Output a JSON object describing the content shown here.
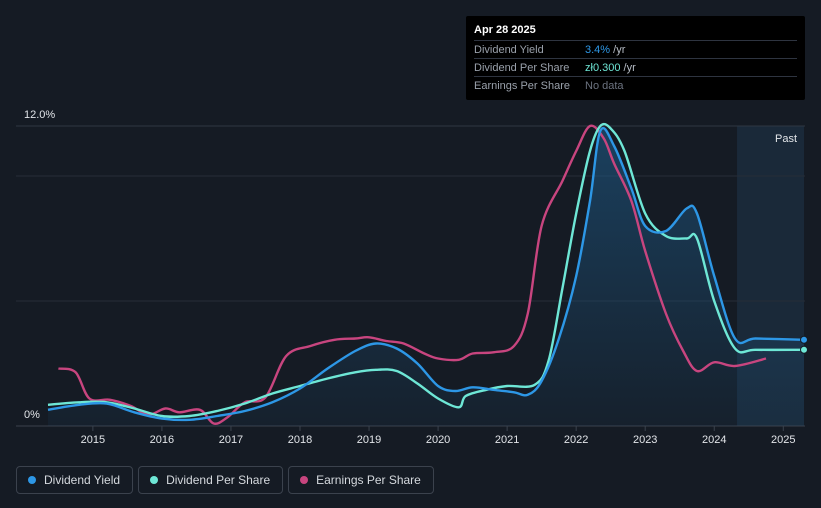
{
  "tooltip": {
    "date": "Apr 28 2025",
    "rows": [
      {
        "label": "Dividend Yield",
        "value": "3.4%",
        "unit": " /yr",
        "color": "#2d97e6"
      },
      {
        "label": "Dividend Per Share",
        "value": "zł0.300",
        "unit": " /yr",
        "color": "#6ee7d6"
      },
      {
        "label": "Earnings Per Share",
        "value": "No data",
        "unit": "",
        "color": "#6c7380"
      }
    ]
  },
  "past_label": "Past",
  "legend": [
    {
      "label": "Dividend Yield",
      "color": "#2d97e6"
    },
    {
      "label": "Dividend Per Share",
      "color": "#6ee7d6"
    },
    {
      "label": "Earnings Per Share",
      "color": "#c8457f"
    }
  ],
  "chart_data": {
    "type": "line",
    "y_labels": [
      "12.0%",
      "0%"
    ],
    "ylim": [
      0,
      12
    ],
    "x_ticks": [
      "2015",
      "2016",
      "2017",
      "2018",
      "2019",
      "2020",
      "2021",
      "2022",
      "2023",
      "2024",
      "2025"
    ],
    "xlim": [
      2014.35,
      2025.3
    ],
    "past_start": 2024.33,
    "series": [
      {
        "name": "Dividend Yield",
        "color": "#2d97e6",
        "area": true,
        "points": [
          [
            2014.35,
            0.65
          ],
          [
            2014.8,
            0.85
          ],
          [
            2015.2,
            0.9
          ],
          [
            2015.6,
            0.55
          ],
          [
            2016.0,
            0.3
          ],
          [
            2016.4,
            0.25
          ],
          [
            2016.8,
            0.4
          ],
          [
            2017.2,
            0.6
          ],
          [
            2017.6,
            0.95
          ],
          [
            2018.0,
            1.5
          ],
          [
            2018.4,
            2.3
          ],
          [
            2018.8,
            3.0
          ],
          [
            2019.1,
            3.3
          ],
          [
            2019.4,
            3.1
          ],
          [
            2019.7,
            2.5
          ],
          [
            2020.0,
            1.6
          ],
          [
            2020.25,
            1.4
          ],
          [
            2020.5,
            1.55
          ],
          [
            2020.8,
            1.45
          ],
          [
            2021.1,
            1.35
          ],
          [
            2021.3,
            1.25
          ],
          [
            2021.5,
            1.8
          ],
          [
            2021.75,
            3.5
          ],
          [
            2022.0,
            6.0
          ],
          [
            2022.2,
            9.0
          ],
          [
            2022.35,
            11.8
          ],
          [
            2022.55,
            11.2
          ],
          [
            2022.8,
            9.5
          ],
          [
            2023.0,
            8.0
          ],
          [
            2023.3,
            7.8
          ],
          [
            2023.6,
            8.7
          ],
          [
            2023.75,
            8.5
          ],
          [
            2024.0,
            6.0
          ],
          [
            2024.3,
            3.5
          ],
          [
            2024.6,
            3.5
          ],
          [
            2025.3,
            3.45
          ]
        ]
      },
      {
        "name": "Dividend Per Share",
        "color": "#6ee7d6",
        "area": false,
        "points": [
          [
            2014.35,
            0.85
          ],
          [
            2014.8,
            0.95
          ],
          [
            2015.2,
            0.95
          ],
          [
            2015.6,
            0.7
          ],
          [
            2016.0,
            0.4
          ],
          [
            2016.4,
            0.4
          ],
          [
            2016.8,
            0.6
          ],
          [
            2017.2,
            0.9
          ],
          [
            2017.6,
            1.3
          ],
          [
            2018.0,
            1.6
          ],
          [
            2018.4,
            1.9
          ],
          [
            2018.8,
            2.15
          ],
          [
            2019.1,
            2.25
          ],
          [
            2019.4,
            2.2
          ],
          [
            2019.7,
            1.7
          ],
          [
            2020.0,
            1.1
          ],
          [
            2020.3,
            0.75
          ],
          [
            2020.4,
            1.2
          ],
          [
            2020.7,
            1.45
          ],
          [
            2021.0,
            1.6
          ],
          [
            2021.4,
            1.65
          ],
          [
            2021.6,
            2.6
          ],
          [
            2021.8,
            5.5
          ],
          [
            2022.0,
            8.5
          ],
          [
            2022.2,
            11.0
          ],
          [
            2022.35,
            12.0
          ],
          [
            2022.5,
            11.9
          ],
          [
            2022.7,
            11.0
          ],
          [
            2023.0,
            8.5
          ],
          [
            2023.3,
            7.6
          ],
          [
            2023.6,
            7.5
          ],
          [
            2023.75,
            7.5
          ],
          [
            2024.0,
            5.0
          ],
          [
            2024.3,
            3.1
          ],
          [
            2024.6,
            3.05
          ],
          [
            2025.3,
            3.05
          ]
        ]
      },
      {
        "name": "Earnings Per Share",
        "color": "#c8457f",
        "area": false,
        "points": [
          [
            2014.5,
            2.3
          ],
          [
            2014.75,
            2.15
          ],
          [
            2014.95,
            1.1
          ],
          [
            2015.25,
            1.05
          ],
          [
            2015.55,
            0.8
          ],
          [
            2015.8,
            0.45
          ],
          [
            2016.05,
            0.7
          ],
          [
            2016.25,
            0.55
          ],
          [
            2016.55,
            0.65
          ],
          [
            2016.75,
            0.1
          ],
          [
            2016.95,
            0.35
          ],
          [
            2017.2,
            0.95
          ],
          [
            2017.5,
            1.15
          ],
          [
            2017.8,
            2.8
          ],
          [
            2018.15,
            3.2
          ],
          [
            2018.5,
            3.45
          ],
          [
            2018.8,
            3.5
          ],
          [
            2019.0,
            3.55
          ],
          [
            2019.25,
            3.4
          ],
          [
            2019.5,
            3.3
          ],
          [
            2019.8,
            2.9
          ],
          [
            2020.0,
            2.7
          ],
          [
            2020.3,
            2.65
          ],
          [
            2020.5,
            2.9
          ],
          [
            2020.8,
            2.95
          ],
          [
            2021.1,
            3.2
          ],
          [
            2021.3,
            4.5
          ],
          [
            2021.5,
            8.0
          ],
          [
            2021.8,
            9.8
          ],
          [
            2022.0,
            11.0
          ],
          [
            2022.2,
            12.0
          ],
          [
            2022.4,
            11.5
          ],
          [
            2022.55,
            10.5
          ],
          [
            2022.8,
            9.0
          ],
          [
            2023.0,
            7.0
          ],
          [
            2023.3,
            4.5
          ],
          [
            2023.55,
            3.0
          ],
          [
            2023.75,
            2.2
          ],
          [
            2024.0,
            2.55
          ],
          [
            2024.3,
            2.4
          ],
          [
            2024.75,
            2.7
          ]
        ]
      }
    ]
  }
}
